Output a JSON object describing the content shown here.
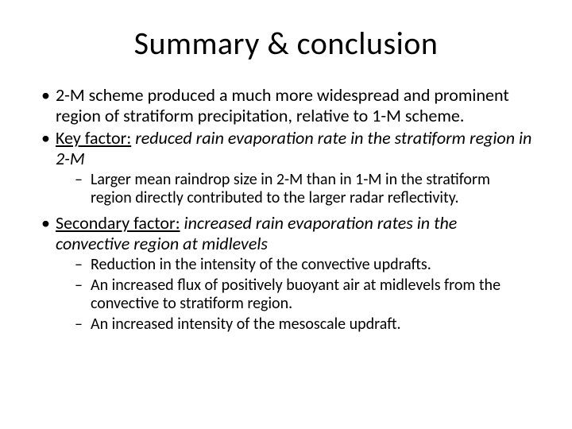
{
  "title": "Summary & conclusion",
  "bullets": {
    "b1": "2-M scheme produced a much more widespread and prominent region of stratiform precipitation, relative to 1-M scheme.",
    "b2_label": "Key factor:",
    "b2_rest": " reduced rain evaporation rate in the stratiform region in 2-M",
    "b2_sub1": "Larger mean raindrop size in 2-M than in 1-M in the stratiform region directly contributed to the larger radar reflectivity.",
    "b3_label": "Secondary factor:",
    "b3_rest": " increased rain evaporation rates in the convective region at midlevels",
    "b3_sub1": "Reduction in the intensity of the convective updrafts.",
    "b3_sub2": "An increased flux of positively buoyant air at midlevels from the convective to stratiform region.",
    "b3_sub3": "An increased intensity of the mesoscale updraft."
  },
  "style": {
    "background_color": "#ffffff",
    "text_color": "#000000",
    "title_fontsize": 40,
    "body_fontsize": 22,
    "sub_fontsize": 20,
    "font_family": "Calibri"
  }
}
